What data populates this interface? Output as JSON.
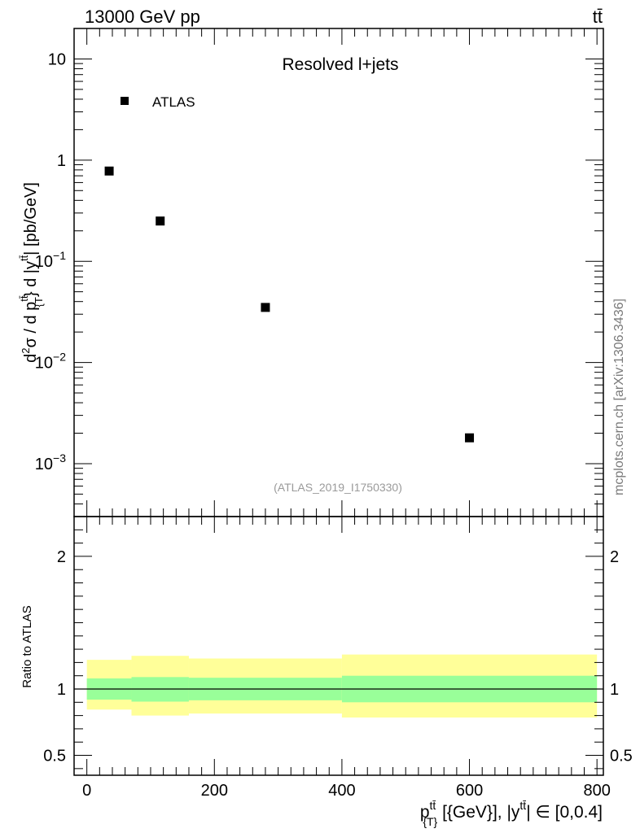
{
  "header": {
    "left": "13000 GeV pp",
    "right": "tt̄"
  },
  "side_label": "mcplots.cern.ch [arXiv:1306.3436]",
  "chart_data": [
    {
      "type": "scatter",
      "title": "Resolved l+jets",
      "analysis_id": "(ATLAS_2019_I1750330)",
      "legend": {
        "label": "ATLAS",
        "placement": "top-left"
      },
      "ylabel_parts": {
        "d2": "d",
        "sup2": "2",
        "sigma": "σ / d p",
        "sup_tt1": "tt̄",
        "sub_T1": "{T",
        "close": "} d |y",
        "sup_tt2": "tt̄",
        "unit": "| [pb/GeV]"
      },
      "yscale": "log",
      "ylim": [
        0.0003,
        20
      ],
      "y_ticks": [
        {
          "value": 10,
          "label": "10"
        },
        {
          "value": 1,
          "label": "1"
        },
        {
          "value": 0.1,
          "base": "10",
          "exp": "−1"
        },
        {
          "value": 0.01,
          "base": "10",
          "exp": "−2"
        },
        {
          "value": 0.001,
          "base": "10",
          "exp": "−3"
        }
      ],
      "xlim": [
        -20,
        810
      ],
      "series": [
        {
          "x": [
            35,
            115,
            280,
            600
          ],
          "y": [
            0.78,
            0.25,
            0.035,
            0.0018
          ]
        }
      ]
    },
    {
      "type": "area",
      "ylabel": "Ratio to ATLAS",
      "ylim": [
        0.35,
        2.3
      ],
      "y_ticks": [
        {
          "value": 0.5,
          "label": "0.5"
        },
        {
          "value": 1,
          "label": "1"
        },
        {
          "value": 2,
          "label": "2"
        }
      ],
      "xlim": [
        -20,
        810
      ],
      "x_ticks": [
        0,
        200,
        400,
        600,
        800
      ],
      "xlabel_parts": {
        "p": "p",
        "sup1": "tt̄",
        "sub1": "{T}",
        "mid": " [{GeV}], |y",
        "sup2": "tt̄",
        "tail": "| ∈ [0,0.4]"
      },
      "bins": [
        0,
        70,
        160,
        400,
        800
      ],
      "inner_band": {
        "lo": [
          0.92,
          0.905,
          0.915,
          0.9
        ],
        "hi": [
          1.08,
          1.09,
          1.085,
          1.1
        ]
      },
      "outer_band": {
        "lo": [
          0.845,
          0.8,
          0.815,
          0.785
        ],
        "hi": [
          1.22,
          1.25,
          1.23,
          1.26
        ]
      },
      "reference": 1,
      "colors": {
        "inner": "#99ff99",
        "outer": "#ffff99",
        "line": "#000000"
      }
    }
  ]
}
